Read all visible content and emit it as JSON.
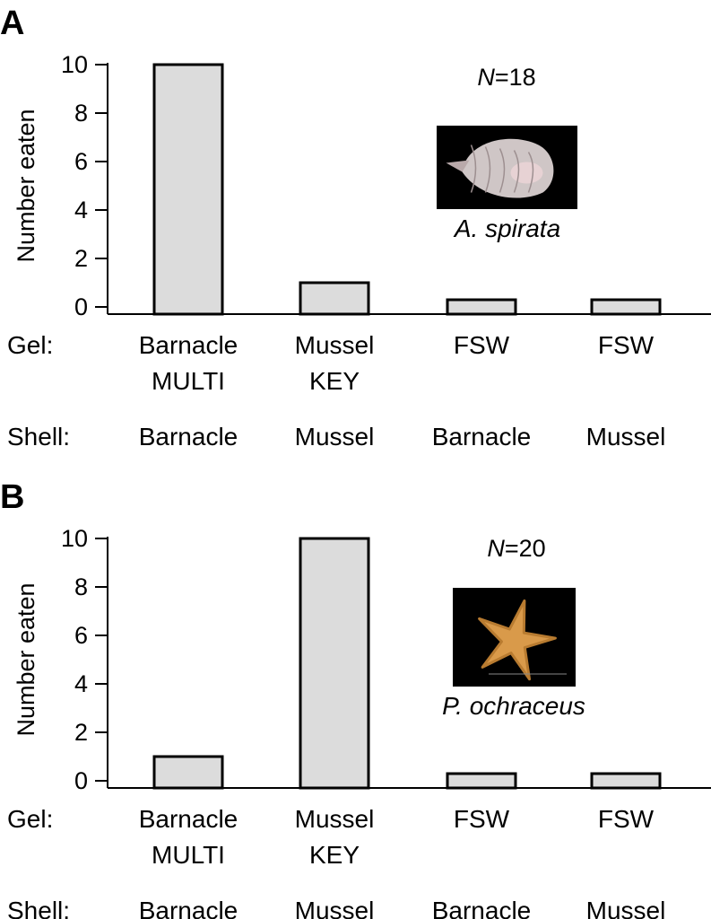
{
  "chart_data": [
    {
      "type": "bar",
      "panel": "A",
      "n_label_italic": "N",
      "n_label_value": "=18",
      "species": "A. spirata",
      "photo": "whelk-shell-photo",
      "ylabel": "Number eaten",
      "ylim": [
        0,
        10
      ],
      "yticks": [
        "0",
        "2",
        "4",
        "6",
        "8",
        "10"
      ],
      "categories": [
        "Barnacle MULTI / Barnacle",
        "Mussel KEY / Mussel",
        "FSW / Barnacle",
        "FSW / Mussel"
      ],
      "values": [
        10,
        1,
        0,
        0
      ],
      "row_labels": {
        "gel": "Gel:",
        "shell": "Shell:"
      },
      "gel": [
        [
          "Barnacle",
          "MULTI"
        ],
        [
          "Mussel",
          "KEY"
        ],
        [
          "FSW",
          ""
        ],
        [
          "FSW",
          ""
        ]
      ],
      "shell": [
        "Barnacle",
        "Mussel",
        "Barnacle",
        "Mussel"
      ]
    },
    {
      "type": "bar",
      "panel": "B",
      "n_label_italic": "N",
      "n_label_value": "=20",
      "species": "P. ochraceus",
      "photo": "sea-star-photo",
      "ylabel": "Number eaten",
      "ylim": [
        0,
        10
      ],
      "yticks": [
        "0",
        "2",
        "4",
        "6",
        "8",
        "10"
      ],
      "categories": [
        "Barnacle MULTI / Barnacle",
        "Mussel KEY / Mussel",
        "FSW / Barnacle",
        "FSW / Mussel"
      ],
      "values": [
        1,
        10,
        0,
        0
      ],
      "row_labels": {
        "gel": "Gel:",
        "shell": "Shell:"
      },
      "gel": [
        [
          "Barnacle",
          "MULTI"
        ],
        [
          "Mussel",
          "KEY"
        ],
        [
          "FSW",
          ""
        ],
        [
          "FSW",
          ""
        ]
      ],
      "shell": [
        "Barnacle",
        "Mussel",
        "Barnacle",
        "Mussel"
      ]
    }
  ],
  "colors": {
    "bar_fill": "#dcdcdc",
    "bar_stroke": "#000000",
    "photo_bg": "#000000"
  }
}
